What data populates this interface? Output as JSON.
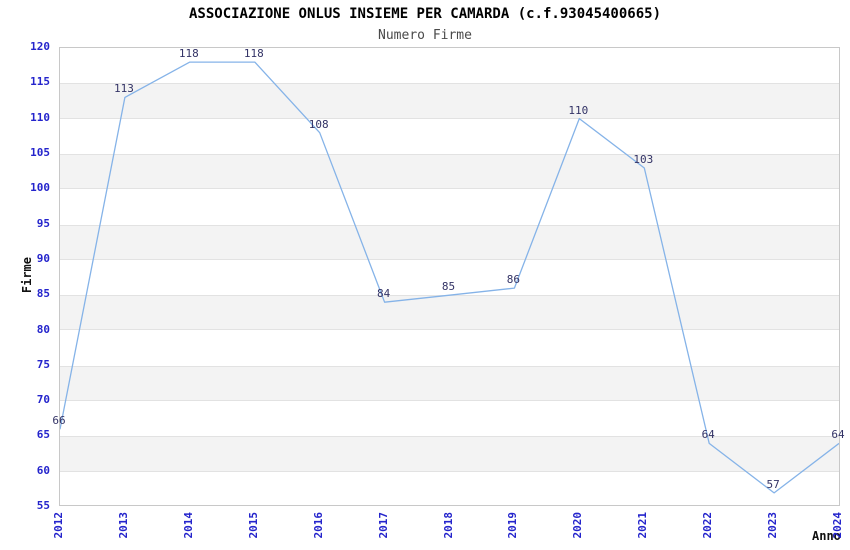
{
  "chart_data": {
    "type": "line",
    "title": "ASSOCIAZIONE ONLUS INSIEME PER CAMARDA (c.f.93045400665)",
    "subtitle": "Numero Firme",
    "xlabel": "Anno",
    "ylabel": "Firme",
    "categories": [
      "2012",
      "2013",
      "2014",
      "2015",
      "2016",
      "2017",
      "2018",
      "2019",
      "2020",
      "2021",
      "2022",
      "2023",
      "2024"
    ],
    "values": [
      66,
      113,
      118,
      118,
      108,
      84,
      85,
      86,
      110,
      103,
      64,
      57,
      64
    ],
    "data_labels_shown": true,
    "ylim": [
      55,
      120
    ],
    "ytick_step": 5,
    "grid_bands": [
      [
        60,
        65
      ],
      [
        70,
        75
      ],
      [
        80,
        85
      ],
      [
        90,
        95
      ],
      [
        100,
        105
      ],
      [
        110,
        115
      ]
    ],
    "legend_position": "none",
    "colors": {
      "line": "#85b3e8",
      "axis_tick_labels": "#2424cc",
      "data_labels": "#333366",
      "band_fill": "#f3f3f3",
      "band_border": "#e2e2e2",
      "plot_border": "#c8c8c8",
      "title": "#000000",
      "subtitle": "#4a4a4a",
      "axis_titles": "#111111",
      "background": "#ffffff"
    }
  }
}
